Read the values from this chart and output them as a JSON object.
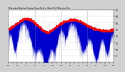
{
  "title": "Milwaukee Weather Outdoor Temperature (Red) vs Wind Chill (Blue) per Minute (24 Hours)",
  "background_color": "#d0d0d0",
  "plot_background": "#ffffff",
  "bar_color": "#0000cc",
  "line_color": "#ff0000",
  "ylim": [
    -10,
    70
  ],
  "yticks": [
    0,
    10,
    20,
    30,
    40,
    50,
    60,
    70
  ],
  "ytick_labels": [
    "0",
    "10",
    "20",
    "30",
    "40",
    "50",
    "60",
    "70"
  ],
  "num_points": 1440,
  "seed": 7,
  "vlines": [
    6,
    12,
    18
  ]
}
